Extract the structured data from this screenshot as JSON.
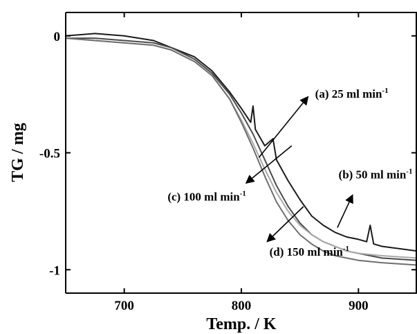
{
  "chart_data": {
    "type": "line",
    "xlabel": "Temp. / K",
    "ylabel": "TG / mg",
    "xlim": [
      650,
      950
    ],
    "ylim": [
      -1.1,
      0.1
    ],
    "xticks": [
      700,
      800,
      900
    ],
    "yticks": [
      0,
      -0.5,
      -1
    ],
    "ytick_labels": [
      "0",
      "-0.5",
      "-1"
    ],
    "grid": false,
    "legend": "none",
    "series": [
      {
        "color": "#1a1a1a",
        "x": [
          650,
          675,
          700,
          725,
          740,
          760,
          775,
          790,
          800,
          808,
          810,
          812,
          820,
          827,
          830,
          840,
          850,
          860,
          870,
          880,
          890,
          900,
          907,
          910,
          913,
          920,
          935,
          950
        ],
        "y": [
          0.0,
          0.01,
          0.0,
          -0.02,
          -0.05,
          -0.09,
          -0.15,
          -0.24,
          -0.31,
          -0.37,
          -0.3,
          -0.4,
          -0.47,
          -0.44,
          -0.53,
          -0.62,
          -0.7,
          -0.77,
          -0.81,
          -0.84,
          -0.86,
          -0.87,
          -0.88,
          -0.81,
          -0.89,
          -0.9,
          -0.91,
          -0.92
        ]
      },
      {
        "color": "#4a4a4a",
        "x": [
          650,
          675,
          700,
          725,
          740,
          760,
          775,
          790,
          800,
          810,
          820,
          830,
          840,
          850,
          860,
          870,
          880,
          890,
          900,
          920,
          950
        ],
        "y": [
          -0.01,
          -0.01,
          -0.02,
          -0.03,
          -0.05,
          -0.1,
          -0.16,
          -0.25,
          -0.33,
          -0.42,
          -0.53,
          -0.64,
          -0.73,
          -0.8,
          -0.85,
          -0.88,
          -0.9,
          -0.92,
          -0.93,
          -0.95,
          -0.96
        ]
      },
      {
        "color": "#a8a8a8",
        "x": [
          650,
          675,
          700,
          725,
          740,
          760,
          775,
          790,
          800,
          810,
          820,
          830,
          840,
          850,
          860,
          870,
          880,
          890,
          900,
          920,
          950
        ],
        "y": [
          -0.01,
          -0.02,
          -0.03,
          -0.04,
          -0.06,
          -0.11,
          -0.17,
          -0.27,
          -0.36,
          -0.46,
          -0.57,
          -0.67,
          -0.75,
          -0.81,
          -0.85,
          -0.88,
          -0.9,
          -0.92,
          -0.93,
          -0.94,
          -0.95
        ]
      },
      {
        "color": "#6e6e6e",
        "x": [
          650,
          675,
          700,
          725,
          740,
          760,
          775,
          790,
          800,
          810,
          820,
          830,
          840,
          850,
          860,
          870,
          880,
          890,
          900,
          920,
          950
        ],
        "y": [
          -0.01,
          -0.02,
          -0.03,
          -0.04,
          -0.06,
          -0.11,
          -0.17,
          -0.27,
          -0.37,
          -0.48,
          -0.6,
          -0.71,
          -0.79,
          -0.85,
          -0.89,
          -0.92,
          -0.94,
          -0.95,
          -0.96,
          -0.97,
          -0.98
        ]
      }
    ],
    "annotations": [
      {
        "name": "(a)",
        "text": "(a) 25 ml min",
        "sup": "-1",
        "tx": 815,
        "ty": -0.52,
        "hx": 857,
        "hy": -0.26,
        "lx": 863,
        "ly": -0.265
      },
      {
        "name": "(b)",
        "text": "(b) 50 ml min",
        "sup": "-1",
        "tx": 882,
        "ty": -0.82,
        "hx": 895,
        "hy": -0.68,
        "lx": 883,
        "ly": -0.61
      },
      {
        "name": "(c)",
        "text": "(c) 100 ml min",
        "sup": "-1",
        "tx": 843,
        "ty": -0.47,
        "hx": 804,
        "hy": -0.63,
        "lx": 737,
        "ly": -0.705
      },
      {
        "name": "(d)",
        "text": "(d) 150 ml min",
        "sup": "-1",
        "tx": 853,
        "ty": -0.73,
        "hx": 822,
        "hy": -0.88,
        "lx": 824,
        "ly": -0.94
      }
    ]
  }
}
